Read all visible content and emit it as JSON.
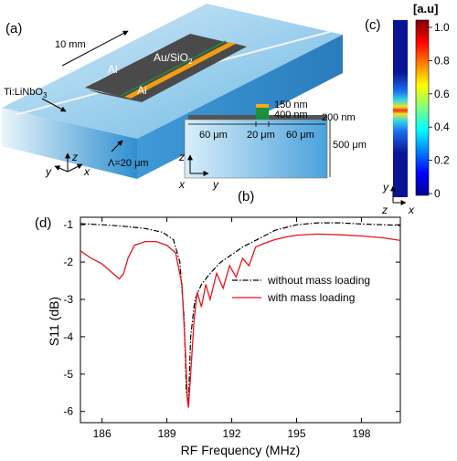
{
  "panels": {
    "a": {
      "label": "(a)",
      "length": "10 mm",
      "electrode_top": "Al",
      "electrode_bottom": "Al",
      "coating": "Au/SiO",
      "coating_sub": "2",
      "substrate": "Ti:LiNbO",
      "substrate_sub": "3",
      "period": "Λ=20 μm",
      "axes": [
        "z",
        "y",
        "x"
      ]
    },
    "b": {
      "label": "(b)",
      "dims": {
        "top_layer": "150 nm",
        "middle_layer": "400 nm",
        "electrode": "200 nm",
        "width_left": "60 μm",
        "width_center": "20 μm",
        "width_right": "60 μm",
        "thickness": "500 μm"
      },
      "axes": [
        "z",
        "x",
        "y"
      ]
    },
    "c": {
      "label": "(c)",
      "unit": "[a.u]",
      "colorbar_ticks": [
        "1.0",
        "0.8",
        "0.6",
        "0.4",
        "0.2",
        "0"
      ],
      "axes": [
        "y",
        "z",
        "x"
      ]
    },
    "d": {
      "label": "(d)"
    }
  },
  "colors": {
    "substrate_light": "#a9d6ef",
    "substrate_dark": "#3e9bd5",
    "electrode": "#4a4a4a",
    "coating": "#f39c12",
    "mass_green": "#1e8f3e",
    "mass_orange": "#f7a81b",
    "with_mass": "#e8141d",
    "without_mass": "#000000"
  },
  "chart_data": {
    "type": "line",
    "xlabel": "RF Frequency (MHz)",
    "ylabel": "S11 (dB)",
    "xlim": [
      185,
      199.8
    ],
    "ylim": [
      -6.3,
      -0.8
    ],
    "xticks": [
      186,
      189,
      192,
      195,
      198
    ],
    "yticks": [
      -1,
      -2,
      -3,
      -4,
      -5,
      -6
    ],
    "legend_position": "center-right",
    "series": [
      {
        "name": "without mass loading",
        "style": "dash-dot",
        "color": "#000000",
        "x": [
          185,
          186,
          187,
          188,
          188.8,
          189.3,
          189.6,
          189.8,
          189.9,
          190.0,
          190.1,
          190.3,
          190.6,
          191.0,
          191.5,
          192.0,
          192.5,
          193.0,
          193.5,
          194.0,
          195.0,
          196.0,
          197.0,
          198.0,
          199.0,
          199.8
        ],
        "y": [
          -0.97,
          -1.0,
          -1.04,
          -1.1,
          -1.2,
          -1.4,
          -2.0,
          -3.5,
          -5.5,
          -5.8,
          -4.0,
          -3.0,
          -2.6,
          -2.3,
          -2.0,
          -1.8,
          -1.6,
          -1.45,
          -1.3,
          -1.15,
          -1.0,
          -0.95,
          -0.95,
          -0.98,
          -1.0,
          -1.02
        ]
      },
      {
        "name": "with mass loading",
        "style": "solid",
        "color": "#e8141d",
        "x": [
          185,
          185.5,
          186.0,
          186.5,
          186.8,
          187.0,
          187.2,
          187.5,
          188.0,
          188.5,
          189.0,
          189.4,
          189.7,
          189.85,
          189.95,
          190.0,
          190.1,
          190.25,
          190.4,
          190.6,
          190.8,
          191.0,
          191.3,
          191.6,
          191.9,
          192.2,
          192.5,
          192.8,
          193.1,
          193.5,
          194.0,
          194.5,
          195.0,
          196.0,
          197.0,
          198.0,
          199.0,
          199.8
        ],
        "y": [
          -1.7,
          -1.9,
          -2.05,
          -2.3,
          -2.45,
          -2.3,
          -1.9,
          -1.55,
          -1.45,
          -1.45,
          -1.55,
          -1.75,
          -2.6,
          -4.3,
          -5.7,
          -5.9,
          -5.0,
          -3.6,
          -2.8,
          -3.2,
          -2.6,
          -3.0,
          -2.3,
          -2.7,
          -2.1,
          -2.4,
          -1.9,
          -2.1,
          -1.6,
          -1.5,
          -1.4,
          -1.33,
          -1.28,
          -1.25,
          -1.27,
          -1.3,
          -1.35,
          -1.42
        ]
      }
    ]
  }
}
